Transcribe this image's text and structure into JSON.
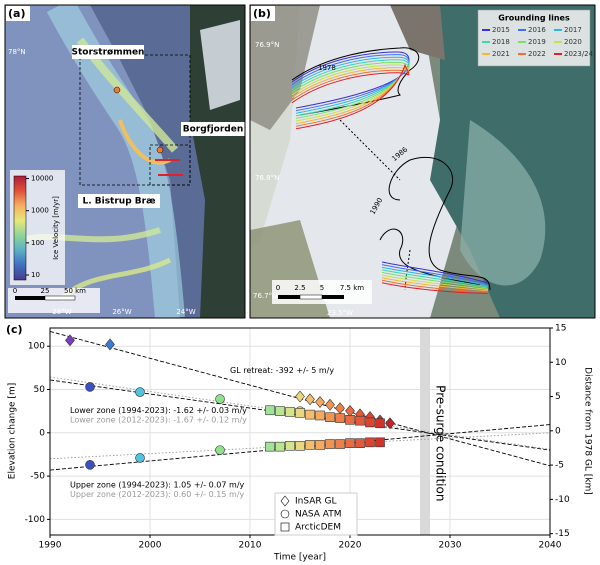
{
  "panels": {
    "a": {
      "label": "(a)",
      "places": [
        "Storstrømmen",
        "Borgfjorden",
        "L. Bistrup Bræ"
      ],
      "lat_labels": [
        "78°N"
      ],
      "lon_labels": [
        "28°W",
        "26°W",
        "24°W"
      ],
      "scale_labels": [
        "0",
        "25",
        "50 km"
      ],
      "colorbar": {
        "label": "Ice Velocity [m/yr]",
        "ticks": [
          10,
          100,
          1000,
          10000
        ],
        "clim": [
          7,
          12000
        ],
        "log": true,
        "colors": [
          "#4a3a8c",
          "#3f6fc0",
          "#5ab0c8",
          "#8fd49a",
          "#e6e87a",
          "#f5b060",
          "#e0503a",
          "#b01c3a"
        ]
      }
    },
    "b": {
      "label": "(b)",
      "legend_title": "Grounding lines",
      "legend": [
        {
          "name": "2015",
          "color": "#3c2fd6"
        },
        {
          "name": "2016",
          "color": "#3d6ff0"
        },
        {
          "name": "2017",
          "color": "#2ab6e6"
        },
        {
          "name": "2018",
          "color": "#3cd6b0"
        },
        {
          "name": "2019",
          "color": "#7be06a"
        },
        {
          "name": "2020",
          "color": "#c6e04a"
        },
        {
          "name": "2021",
          "color": "#f5b43a"
        },
        {
          "name": "2022",
          "color": "#f0702e"
        },
        {
          "name": "2023/24",
          "color": "#e0202a"
        }
      ],
      "line_labels": [
        "1978",
        "1986",
        "1990"
      ],
      "lat_labels": [
        "76.9°N",
        "76.8°N",
        "76.7°N"
      ],
      "lon_labels": [
        "23.5°W"
      ],
      "scale_labels": [
        "0",
        "2.5",
        "5",
        "7.5 km"
      ]
    }
  },
  "chart_data": {
    "type": "scatter",
    "panel_label": "(c)",
    "xlabel": "Time [year]",
    "ylabel": "Elevation change [m]",
    "y2label": "Distance from 1978 GL [km]",
    "xlim": [
      1990,
      2040
    ],
    "xticks": [
      1990,
      2000,
      2010,
      2020,
      2030,
      2040
    ],
    "ylim": [
      -118,
      121
    ],
    "yticks": [
      -100,
      -50,
      0,
      50,
      100
    ],
    "y2lim": [
      -15.2,
      15
    ],
    "y2ticks": [
      -15,
      -10,
      -5,
      0,
      5,
      10,
      15
    ],
    "grid": true,
    "series": [
      {
        "marker": "diamond",
        "axis": "y2",
        "x": [
          1992,
          1996,
          2015,
          2016,
          2017,
          2018,
          2019,
          2020,
          2021,
          2022,
          2023,
          2024
        ],
        "values": [
          13.2,
          12.6,
          5.0,
          4.6,
          4.2,
          3.8,
          3.3,
          2.9,
          2.4,
          2.0,
          1.5,
          1.1
        ],
        "colors": [
          "#7a3fbf",
          "#3a7bd5",
          "#ecd77e",
          "#f4bd6c",
          "#f5a85e",
          "#f09452",
          "#ec8048",
          "#e86c40",
          "#e35838",
          "#dc4430",
          "#d33228",
          "#c82222"
        ]
      },
      {
        "marker": "circle",
        "x": [
          1994,
          1999,
          2007,
          2015
        ],
        "values": [
          53,
          47,
          39,
          25
        ],
        "colors": [
          "#3e4fc4",
          "#4fc3e0",
          "#8ee08a",
          "#ecd77e"
        ]
      },
      {
        "marker": "circle",
        "x": [
          1994,
          1999,
          2007,
          2015
        ],
        "values": [
          -37,
          -29,
          -20,
          -15
        ],
        "colors": [
          "#3e4fc4",
          "#4fc3e0",
          "#8ee08a",
          "#ecd77e"
        ]
      },
      {
        "marker": "square",
        "x": [
          2012,
          2013,
          2014,
          2015,
          2016,
          2017,
          2018,
          2019,
          2020,
          2021,
          2022,
          2023
        ],
        "values": [
          26,
          25,
          24,
          23,
          21,
          20,
          18,
          17,
          15,
          14,
          12,
          11
        ],
        "colors": [
          "#a0e29a",
          "#b8e592",
          "#d3e48a",
          "#ecd77e",
          "#f4bd6c",
          "#f5a85e",
          "#f09452",
          "#ec8048",
          "#e86c40",
          "#e35838",
          "#dc4430",
          "#d33228"
        ]
      },
      {
        "marker": "square",
        "x": [
          2012,
          2013,
          2014,
          2015,
          2016,
          2017,
          2018,
          2019,
          2020,
          2021,
          2022,
          2023
        ],
        "values": [
          -16,
          -16,
          -15,
          -15,
          -14,
          -14,
          -13,
          -13,
          -12,
          -12,
          -11,
          -11
        ],
        "colors": [
          "#a0e29a",
          "#b8e592",
          "#d3e48a",
          "#ecd77e",
          "#f4bd6c",
          "#f5a85e",
          "#f09452",
          "#ec8048",
          "#e86c40",
          "#e35838",
          "#dc4430",
          "#d33228"
        ]
      }
    ],
    "fits": [
      {
        "axis": "y2",
        "x": [
          1990,
          2040
        ],
        "values": [
          14.5,
          -5.1
        ],
        "color": "#000000",
        "dash": "dashed"
      },
      {
        "x": [
          1990,
          2040
        ],
        "values": [
          61,
          -20
        ],
        "color": "#000000",
        "dash": "dashed"
      },
      {
        "x": [
          1990,
          2040
        ],
        "values": [
          64.4,
          -19.1
        ],
        "color": "#999999",
        "dash": "dotted"
      },
      {
        "x": [
          1990,
          2040
        ],
        "values": [
          -43,
          9.5
        ],
        "color": "#000000",
        "dash": "dashed"
      },
      {
        "x": [
          1990,
          2040
        ],
        "values": [
          -30,
          0
        ],
        "color": "#999999",
        "dash": "dotted"
      }
    ],
    "shaded_span": [
      2027,
      2028
    ],
    "shaded_color": "#d9d9d9",
    "annotations": [
      {
        "text": "GL retreat:  -392 +/- 5 m/y",
        "color": "#000000"
      },
      {
        "text": "Lower zone (1994-2023):  -1.62 +/- 0.03 m/y",
        "color": "#000000"
      },
      {
        "text": "Lower zone (2012-2023):  -1.67 +/- 0.12 m/y",
        "color": "#999999"
      },
      {
        "text": "Upper zone (1994-2023):  1.05 +/- 0.07 m/y",
        "color": "#000000"
      },
      {
        "text": "Upper zone (2012-2023):  0.60 +/- 0.15 m/y",
        "color": "#999999"
      },
      {
        "text": "Pre-surge condition",
        "color": "#000000"
      }
    ],
    "legend": {
      "entries": [
        "InSAR GL",
        "NASA ATM",
        "ArcticDEM"
      ],
      "markers": [
        "diamond",
        "circle",
        "square"
      ]
    }
  }
}
